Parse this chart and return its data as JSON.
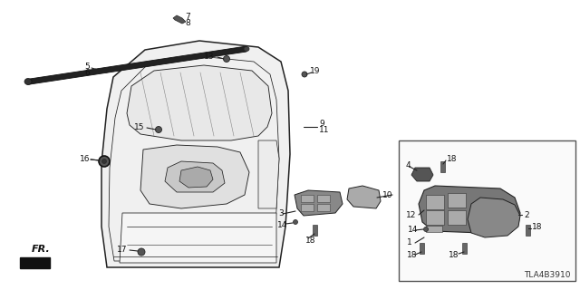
{
  "bg_color": "#ffffff",
  "fig_width": 6.4,
  "fig_height": 3.2,
  "dpi": 100,
  "watermark": "TLA4B3910",
  "lc": "#222222",
  "lw": 0.8,
  "font_size": 6.5,
  "label_color": "#111111"
}
